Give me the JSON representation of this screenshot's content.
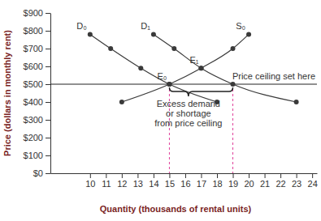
{
  "chart_data": {
    "type": "line",
    "x_label": "Quantity (thousands of rental units)",
    "y_label": "Price (dollars in monthly rent)",
    "xlim": [
      7.5,
      24.3
    ],
    "ylim": [
      0,
      900
    ],
    "xticks": [
      10,
      11,
      12,
      13,
      14,
      15,
      16,
      17,
      18,
      19,
      20,
      21,
      22,
      23,
      24
    ],
    "yticks": [
      {
        "value": 0,
        "label": "$0"
      },
      {
        "value": 100,
        "label": "$100"
      },
      {
        "value": 200,
        "label": "$200"
      },
      {
        "value": 300,
        "label": "$300"
      },
      {
        "value": 400,
        "label": "$400"
      },
      {
        "value": 500,
        "label": "$500"
      },
      {
        "value": 600,
        "label": "$600"
      },
      {
        "value": 700,
        "label": "$700"
      },
      {
        "value": 800,
        "label": "$800"
      },
      {
        "value": 900,
        "label": "$900"
      }
    ],
    "grid": false,
    "series": [
      {
        "name": "D₀",
        "color": "#3a3a3a",
        "marker": "circle",
        "line_style": "solid",
        "x": [
          10,
          11.3,
          13.2,
          15,
          18
        ],
        "values": [
          780,
          700,
          590,
          500,
          400
        ]
      },
      {
        "name": "D₁",
        "color": "#3a3a3a",
        "marker": "circle",
        "line_style": "solid",
        "x": [
          14,
          15.3,
          17,
          19,
          23
        ],
        "values": [
          780,
          700,
          590,
          500,
          400
        ]
      },
      {
        "name": "S₀",
        "color": "#3a3a3a",
        "marker": "circle",
        "line_style": "solid",
        "x": [
          12,
          15,
          17,
          19,
          20
        ],
        "values": [
          400,
          500,
          590,
          700,
          780
        ]
      }
    ],
    "points": [
      {
        "label": "E₀",
        "x": 15,
        "y": 500
      },
      {
        "label": "E₁",
        "x": 17,
        "y": 590
      }
    ],
    "price_ceiling": {
      "value": 500,
      "label": "Price ceiling set here"
    },
    "shortage": {
      "from": 15,
      "to": 19,
      "label": [
        "Excess demand",
        "or shortage",
        "from price ceiling"
      ]
    }
  }
}
